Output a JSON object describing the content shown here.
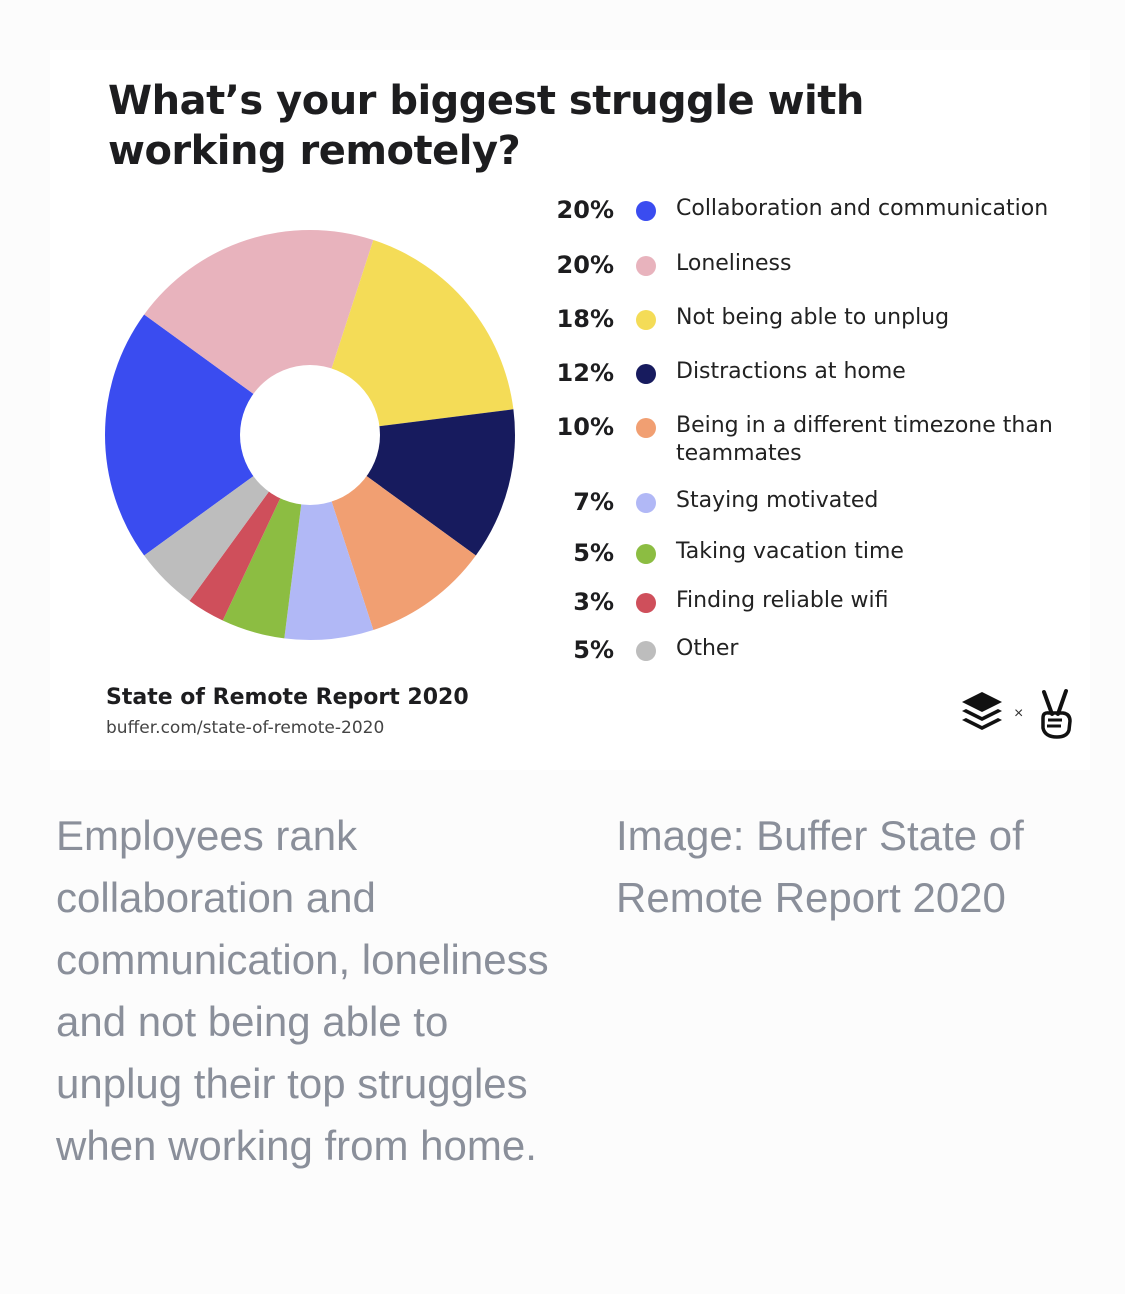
{
  "chart_data": {
    "type": "pie",
    "title": "What’s your biggest struggle with working remotely?",
    "series": [
      {
        "label": "Collaboration and communication",
        "value": 20,
        "pct_label": "20%",
        "color": "#3a4cf0"
      },
      {
        "label": "Loneliness",
        "value": 20,
        "pct_label": "20%",
        "color": "#e8b3bd"
      },
      {
        "label": "Not being able to unplug",
        "value": 18,
        "pct_label": "18%",
        "color": "#f4dc57"
      },
      {
        "label": "Distractions at home",
        "value": 12,
        "pct_label": "12%",
        "color": "#171b5e"
      },
      {
        "label": "Being in a different timezone than teammates",
        "value": 10,
        "pct_label": "10%",
        "color": "#f19f72"
      },
      {
        "label": "Staying motivated",
        "value": 7,
        "pct_label": "7%",
        "color": "#b1b8f6"
      },
      {
        "label": "Taking vacation time",
        "value": 5,
        "pct_label": "5%",
        "color": "#8cbd42"
      },
      {
        "label": "Finding reliable wifi",
        "value": 3,
        "pct_label": "3%",
        "color": "#cf4f5b"
      },
      {
        "label": "Other",
        "value": 5,
        "pct_label": "5%",
        "color": "#bdbdbd"
      }
    ]
  },
  "source": {
    "title": "State of Remote Report 2020",
    "url": "buffer.com/state-of-remote-2020"
  },
  "logos": {
    "left_icon": "buffer-stack-icon",
    "separator": "×",
    "right_icon": "peace-hand-icon"
  },
  "caption": {
    "left": "Employees rank collaboration and communication, loneliness and not being able to unplug their top struggles when working from home.",
    "right": "Image: Buffer State of Remote Report 2020"
  }
}
